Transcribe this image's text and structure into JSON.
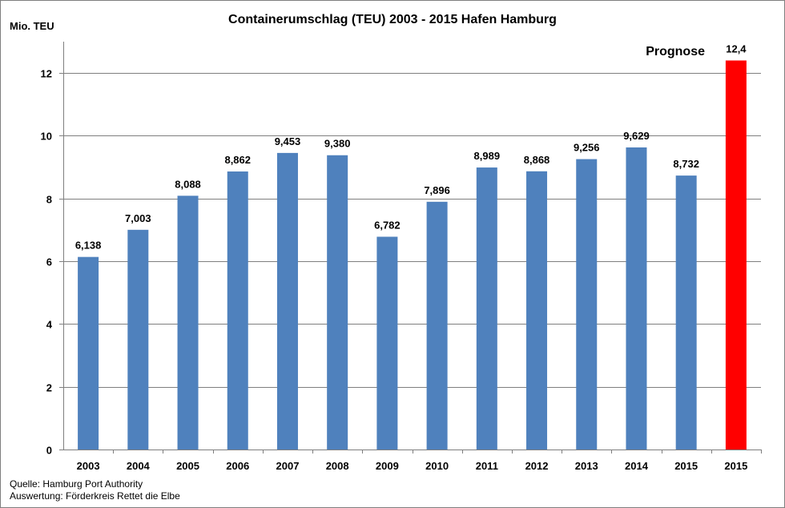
{
  "chart_data": {
    "type": "bar",
    "title": "Containerumschlag (TEU) 2003 - 2015  Hafen Hamburg",
    "ylabel": "Mio. TEU",
    "xlabel": "",
    "ylim": [
      0,
      13
    ],
    "yticks": [
      0,
      2,
      4,
      6,
      8,
      10,
      12
    ],
    "grid": true,
    "categories": [
      "2003",
      "2004",
      "2005",
      "2006",
      "2007",
      "2008",
      "2009",
      "2010",
      "2011",
      "2012",
      "2013",
      "2014",
      "2015",
      "2015"
    ],
    "values": [
      6.138,
      7.003,
      8.088,
      8.862,
      9.453,
      9.38,
      6.782,
      7.896,
      8.989,
      8.868,
      9.256,
      9.629,
      8.732,
      12.4
    ],
    "value_labels": [
      "6,138",
      "7,003",
      "8,088",
      "8,862",
      "9,453",
      "9,380",
      "6,782",
      "7,896",
      "8,989",
      "8,868",
      "9,256",
      "9,629",
      "8,732",
      "12,4"
    ],
    "colors": [
      "#4f81bd",
      "#4f81bd",
      "#4f81bd",
      "#4f81bd",
      "#4f81bd",
      "#4f81bd",
      "#4f81bd",
      "#4f81bd",
      "#4f81bd",
      "#4f81bd",
      "#4f81bd",
      "#4f81bd",
      "#4f81bd",
      "#ff0000"
    ],
    "label_colors": [
      "#000000",
      "#000000",
      "#000000",
      "#000000",
      "#000000",
      "#000000",
      "#000000",
      "#000000",
      "#000000",
      "#000000",
      "#000000",
      "#000000",
      "#000000",
      "#ff0000"
    ],
    "annotation": {
      "text": "Prognose",
      "color": "#ff0000"
    }
  },
  "footer": {
    "source_line1": "Quelle: Hamburg Port Authority",
    "source_line2": "Auswertung: Förderkreis Rettet die Elbe"
  }
}
